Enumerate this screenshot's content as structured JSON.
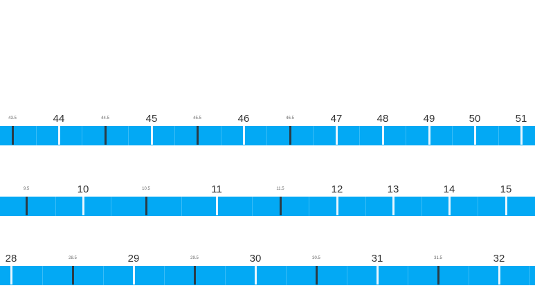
{
  "colors": {
    "bar": "#03a9f4",
    "major_tick": "#e8f6fe",
    "minor_tick": "#2b3b45",
    "label": "#333333"
  },
  "rulers": [
    {
      "major_labels": [
        "44",
        "45",
        "46",
        "47",
        "48",
        "49",
        "50",
        "51"
      ],
      "minor_labels": [
        "43.5",
        "44.5",
        "45.5",
        "46.5"
      ]
    },
    {
      "major_labels": [
        "10",
        "11",
        "12",
        "13",
        "14",
        "15"
      ],
      "minor_labels": [
        "9.5",
        "10.5",
        "11.5"
      ]
    },
    {
      "major_labels": [
        "28",
        "29",
        "30",
        "31",
        "32"
      ],
      "minor_labels": [
        "28.5",
        "29.5",
        "30.5",
        "31.5"
      ]
    }
  ]
}
